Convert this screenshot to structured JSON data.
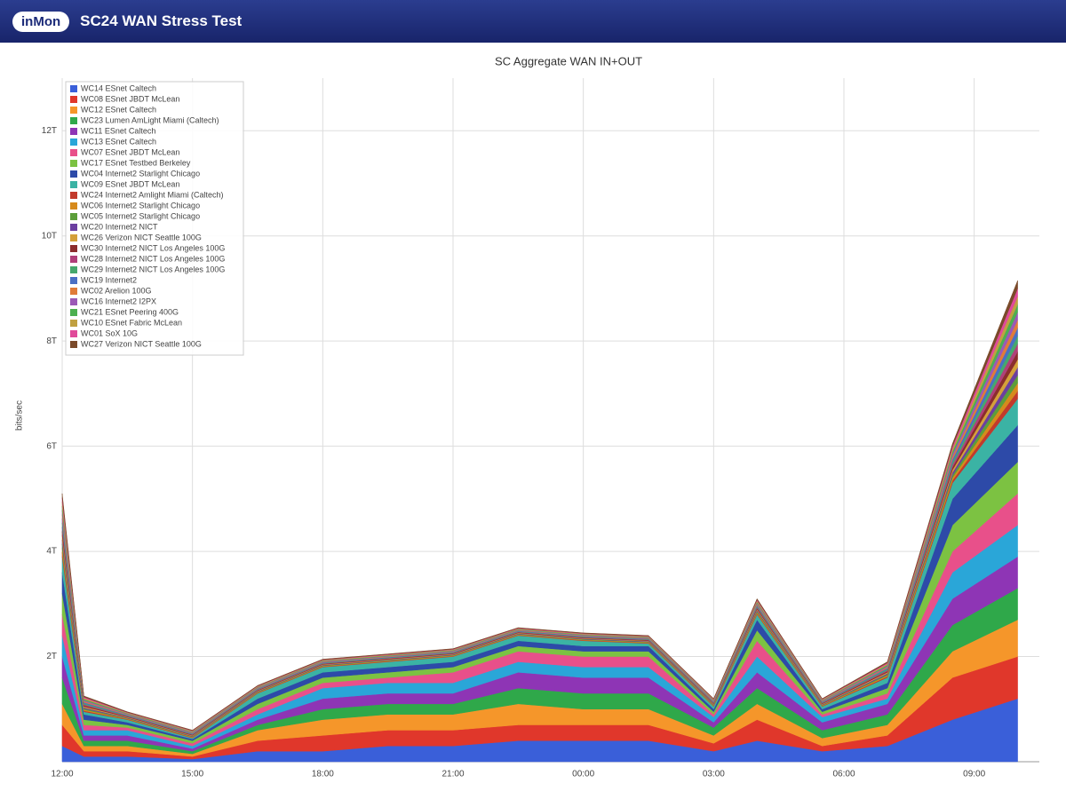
{
  "header": {
    "logo": "inMon",
    "title": "SC24 WAN Stress Test"
  },
  "chart_data": {
    "type": "stacked-area",
    "title": "SC Aggregate WAN IN+OUT",
    "y_label": "bits/sec",
    "x": [
      0,
      0.5,
      1.5,
      3,
      4.5,
      6,
      7.5,
      9,
      10.5,
      12,
      13.5,
      15,
      16,
      17.5,
      19,
      20.5,
      22
    ],
    "xlim": [
      0,
      22.5
    ],
    "xticks": [
      {
        "value": 0,
        "label": "12:00"
      },
      {
        "value": 3,
        "label": "15:00"
      },
      {
        "value": 6,
        "label": "18:00"
      },
      {
        "value": 9,
        "label": "21:00"
      },
      {
        "value": 12,
        "label": "00:00"
      },
      {
        "value": 15,
        "label": "03:00"
      },
      {
        "value": 18,
        "label": "06:00"
      },
      {
        "value": 21,
        "label": "09:00"
      }
    ],
    "ylim": [
      0,
      13
    ],
    "yticks": [
      {
        "value": 2,
        "label": "2T"
      },
      {
        "value": 4,
        "label": "4T"
      },
      {
        "value": 6,
        "label": "6T"
      },
      {
        "value": 8,
        "label": "8T"
      },
      {
        "value": 10,
        "label": "10T"
      },
      {
        "value": 12,
        "label": "12T"
      }
    ],
    "grid": true,
    "legend": "top-left",
    "series": [
      {
        "name": "WC14 ESnet Caltech",
        "color": "#3a5fd9",
        "values": [
          0.3,
          0.1,
          0.1,
          0.05,
          0.2,
          0.2,
          0.3,
          0.3,
          0.4,
          0.4,
          0.4,
          0.2,
          0.4,
          0.2,
          0.3,
          0.8,
          1.2
        ]
      },
      {
        "name": "WC08 ESnet JBDT McLean",
        "color": "#e0372b",
        "values": [
          0.4,
          0.1,
          0.1,
          0.05,
          0.2,
          0.3,
          0.3,
          0.3,
          0.3,
          0.3,
          0.3,
          0.15,
          0.4,
          0.1,
          0.2,
          0.8,
          0.8
        ]
      },
      {
        "name": "WC12 ESnet Caltech",
        "color": "#f5962a",
        "values": [
          0.4,
          0.1,
          0.1,
          0.05,
          0.2,
          0.3,
          0.3,
          0.3,
          0.4,
          0.3,
          0.3,
          0.15,
          0.3,
          0.15,
          0.2,
          0.5,
          0.7
        ]
      },
      {
        "name": "WC23 Lumen AmLight Miami (Caltech)",
        "color": "#2fa84a",
        "values": [
          0.5,
          0.1,
          0.1,
          0.05,
          0.1,
          0.2,
          0.2,
          0.2,
          0.3,
          0.3,
          0.3,
          0.15,
          0.3,
          0.15,
          0.2,
          0.5,
          0.6
        ]
      },
      {
        "name": "WC11 ESnet Caltech",
        "color": "#8e35b5",
        "values": [
          0.4,
          0.1,
          0.1,
          0.05,
          0.1,
          0.2,
          0.2,
          0.2,
          0.3,
          0.3,
          0.3,
          0.1,
          0.3,
          0.15,
          0.2,
          0.5,
          0.6
        ]
      },
      {
        "name": "WC13 ESnet Caltech",
        "color": "#2aa6d8",
        "values": [
          0.4,
          0.1,
          0.1,
          0.05,
          0.1,
          0.2,
          0.2,
          0.2,
          0.2,
          0.2,
          0.2,
          0.1,
          0.3,
          0.1,
          0.1,
          0.5,
          0.6
        ]
      },
      {
        "name": "WC07 ESnet JBDT McLean",
        "color": "#e8508a",
        "values": [
          0.4,
          0.1,
          0.05,
          0.05,
          0.1,
          0.1,
          0.1,
          0.2,
          0.2,
          0.2,
          0.2,
          0.05,
          0.3,
          0.05,
          0.1,
          0.4,
          0.6
        ]
      },
      {
        "name": "WC17 ESnet Testbed Berkeley",
        "color": "#7cc242",
        "values": [
          0.4,
          0.1,
          0.05,
          0.05,
          0.1,
          0.1,
          0.1,
          0.1,
          0.1,
          0.1,
          0.1,
          0.05,
          0.2,
          0.05,
          0.1,
          0.5,
          0.6
        ]
      },
      {
        "name": "WC04 Internet2 Starlight Chicago",
        "color": "#2d4aa8",
        "values": [
          0.4,
          0.1,
          0.05,
          0.03,
          0.1,
          0.1,
          0.1,
          0.1,
          0.1,
          0.1,
          0.1,
          0.05,
          0.2,
          0.05,
          0.1,
          0.5,
          0.7
        ]
      },
      {
        "name": "WC09 ESnet JBDT McLean",
        "color": "#3bb3a4",
        "values": [
          0.3,
          0.05,
          0.05,
          0.02,
          0.1,
          0.1,
          0.1,
          0.1,
          0.1,
          0.1,
          0.05,
          0.05,
          0.1,
          0.05,
          0.1,
          0.3,
          0.5
        ]
      },
      {
        "name": "WC24 Internet2 Amlight Miami (Caltech)",
        "color": "#c23a2c",
        "values": [
          0.08,
          0.02,
          0.01,
          0.01,
          0.01,
          0.01,
          0.01,
          0.01,
          0.01,
          0.01,
          0.01,
          0.01,
          0.02,
          0.01,
          0.02,
          0.05,
          0.15
        ]
      },
      {
        "name": "WC06 Internet2 Starlight Chicago",
        "color": "#d68a1c",
        "values": [
          0.08,
          0.02,
          0.01,
          0.01,
          0.01,
          0.01,
          0.01,
          0.01,
          0.01,
          0.01,
          0.01,
          0.01,
          0.02,
          0.01,
          0.02,
          0.05,
          0.15
        ]
      },
      {
        "name": "WC05 Internet2 Starlight Chicago",
        "color": "#5c9e3a",
        "values": [
          0.08,
          0.02,
          0.01,
          0.01,
          0.01,
          0.01,
          0.01,
          0.01,
          0.01,
          0.01,
          0.01,
          0.01,
          0.02,
          0.01,
          0.02,
          0.05,
          0.15
        ]
      },
      {
        "name": "WC20 Internet2 NICT",
        "color": "#6b3fa0",
        "values": [
          0.08,
          0.02,
          0.01,
          0.01,
          0.01,
          0.01,
          0.01,
          0.01,
          0.01,
          0.01,
          0.01,
          0.01,
          0.02,
          0.01,
          0.02,
          0.05,
          0.15
        ]
      },
      {
        "name": "WC26 Verizon NICT Seattle 100G",
        "color": "#d4a03a",
        "values": [
          0.08,
          0.02,
          0.01,
          0.01,
          0.01,
          0.01,
          0.01,
          0.01,
          0.01,
          0.01,
          0.01,
          0.01,
          0.02,
          0.01,
          0.02,
          0.05,
          0.15
        ]
      },
      {
        "name": "WC30 Internet2 NICT Los Angeles 100G",
        "color": "#8b2d2d",
        "values": [
          0.08,
          0.02,
          0.01,
          0.01,
          0.01,
          0.01,
          0.01,
          0.01,
          0.01,
          0.01,
          0.01,
          0.01,
          0.02,
          0.01,
          0.02,
          0.05,
          0.15
        ]
      },
      {
        "name": "WC28 Internet2 NICT Los Angeles 100G",
        "color": "#b0407a",
        "values": [
          0.08,
          0.02,
          0.01,
          0.01,
          0.01,
          0.01,
          0.01,
          0.01,
          0.01,
          0.01,
          0.01,
          0.01,
          0.02,
          0.01,
          0.02,
          0.05,
          0.15
        ]
      },
      {
        "name": "WC29 Internet2 NICT Los Angeles 100G",
        "color": "#46a86c",
        "values": [
          0.08,
          0.02,
          0.01,
          0.01,
          0.01,
          0.01,
          0.01,
          0.01,
          0.01,
          0.01,
          0.01,
          0.01,
          0.02,
          0.01,
          0.02,
          0.05,
          0.15
        ]
      },
      {
        "name": "WC19 Internet2",
        "color": "#4a6fc4",
        "values": [
          0.08,
          0.02,
          0.01,
          0.01,
          0.01,
          0.01,
          0.01,
          0.01,
          0.01,
          0.01,
          0.01,
          0.01,
          0.02,
          0.01,
          0.02,
          0.05,
          0.15
        ]
      },
      {
        "name": "WC02 Arelion 100G",
        "color": "#e07b39",
        "values": [
          0.08,
          0.02,
          0.01,
          0.01,
          0.01,
          0.01,
          0.01,
          0.01,
          0.01,
          0.01,
          0.01,
          0.01,
          0.02,
          0.01,
          0.02,
          0.05,
          0.15
        ]
      },
      {
        "name": "WC16 Internet2 I2PX",
        "color": "#9b59b6",
        "values": [
          0.08,
          0.02,
          0.01,
          0.01,
          0.01,
          0.01,
          0.01,
          0.01,
          0.01,
          0.01,
          0.01,
          0.01,
          0.02,
          0.01,
          0.02,
          0.05,
          0.15
        ]
      },
      {
        "name": "WC21 ESnet Peering 400G",
        "color": "#4caf50",
        "values": [
          0.08,
          0.02,
          0.01,
          0.01,
          0.01,
          0.01,
          0.01,
          0.01,
          0.01,
          0.01,
          0.01,
          0.01,
          0.02,
          0.01,
          0.02,
          0.05,
          0.15
        ]
      },
      {
        "name": "WC10 ESnet Fabric McLean",
        "color": "#c0a040",
        "values": [
          0.08,
          0.02,
          0.01,
          0.01,
          0.01,
          0.01,
          0.01,
          0.01,
          0.01,
          0.01,
          0.01,
          0.01,
          0.02,
          0.01,
          0.02,
          0.05,
          0.15
        ]
      },
      {
        "name": "WC01 SoX 10G",
        "color": "#e04a9a",
        "values": [
          0.08,
          0.02,
          0.01,
          0.01,
          0.01,
          0.01,
          0.01,
          0.01,
          0.01,
          0.01,
          0.01,
          0.01,
          0.02,
          0.01,
          0.02,
          0.05,
          0.15
        ]
      },
      {
        "name": "WC27 Verizon NICT Seattle 100G",
        "color": "#7a4a2a",
        "values": [
          0.08,
          0.02,
          0.01,
          0.01,
          0.01,
          0.01,
          0.01,
          0.01,
          0.01,
          0.01,
          0.01,
          0.01,
          0.02,
          0.01,
          0.02,
          0.05,
          0.15
        ]
      }
    ]
  }
}
